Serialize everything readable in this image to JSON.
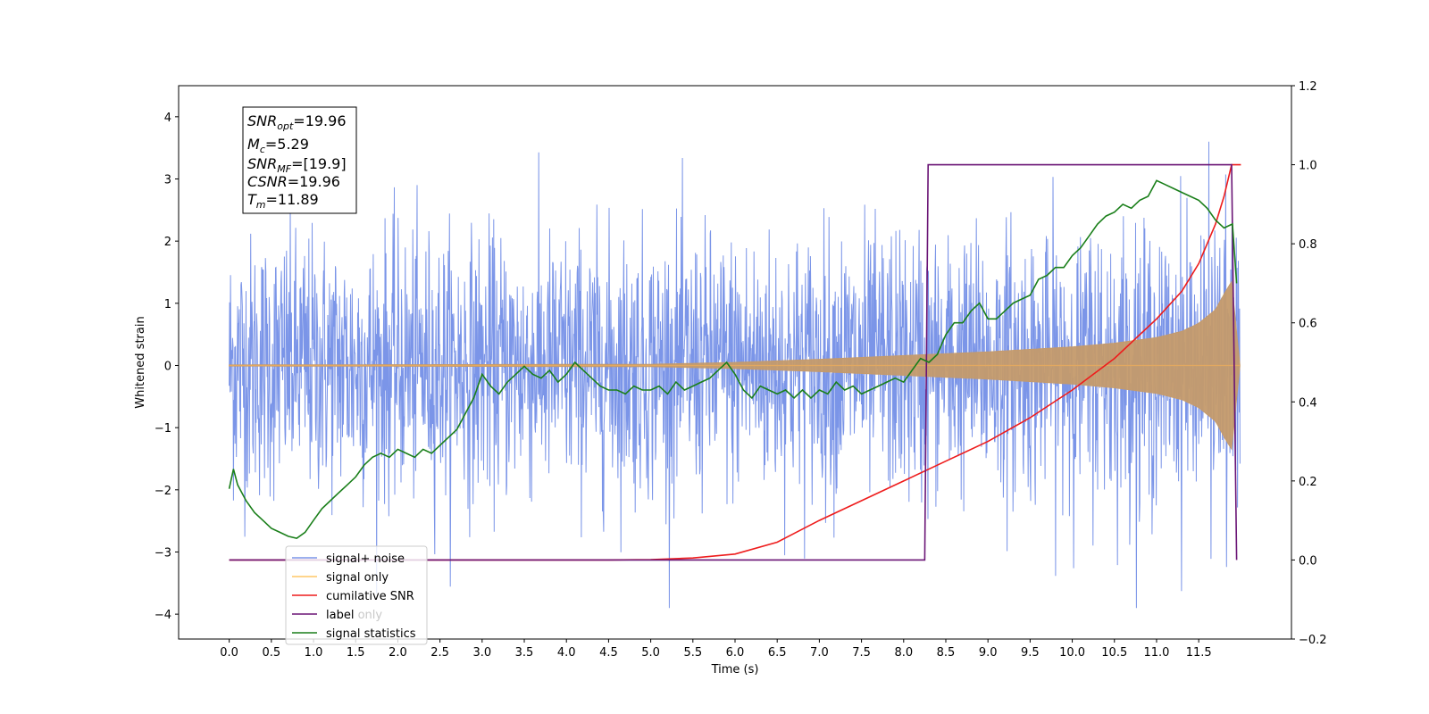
{
  "chart_data": {
    "type": "line",
    "xlabel": "Time (s)",
    "ylabel": "Whitened strain",
    "xlim": [
      -0.6,
      12.6
    ],
    "ylim": [
      -4.4,
      4.5
    ],
    "ylim_right": [
      -0.2,
      1.2
    ],
    "x_ticks": [
      "0.0",
      "0.5",
      "1.0",
      "1.5",
      "2.0",
      "2.5",
      "3.0",
      "3.5",
      "4.0",
      "4.5",
      "5.0",
      "5.5",
      "6.0",
      "6.5",
      "7.0",
      "7.5",
      "8.0",
      "8.5",
      "9.0",
      "9.5",
      "10.0",
      "10.5",
      "11.0",
      "11.5"
    ],
    "y_ticks": [
      "4",
      "3",
      "2",
      "1",
      "0",
      "−1",
      "−2",
      "−3",
      "−4"
    ],
    "y_ticks_right": [
      "1.2",
      "1.0",
      "0.8",
      "0.6",
      "0.4",
      "0.2",
      "0.0",
      "−0.2"
    ],
    "grid": false,
    "legend_position": "lower-left",
    "info_box": {
      "snr_opt_base": "SNR",
      "snr_opt_sub": "opt",
      "snr_opt_val": "=19.96",
      "mc_base": "M",
      "mc_sub": "c",
      "mc_val": "=5.29",
      "snr_mf_base": "SNR",
      "snr_mf_sub": "MF",
      "snr_mf_val": "=[19.9]",
      "csnr_base": "CSNR",
      "csnr_val": "=19.96",
      "tm_base": "T",
      "tm_sub": "m",
      "tm_val": "=11.89"
    },
    "series": [
      {
        "name": "signal+ noise",
        "color": "#7b95e8",
        "axis": "left",
        "description_values": {
          "noise_sigma": 1.0,
          "t_start": 0.0,
          "t_end": 11.99
        }
      },
      {
        "name": "signal only",
        "color": "#c49a6c",
        "axis": "left",
        "envelope": {
          "t": [
            0.0,
            5.0,
            6.0,
            7.0,
            8.0,
            9.0,
            10.0,
            10.5,
            11.0,
            11.3,
            11.5,
            11.7,
            11.8,
            11.89,
            11.99
          ],
          "amp": [
            0.01,
            0.02,
            0.05,
            0.1,
            0.16,
            0.22,
            0.3,
            0.36,
            0.45,
            0.55,
            0.68,
            0.9,
            1.15,
            1.35,
            0.0
          ]
        }
      },
      {
        "name": "cumilative SNR",
        "color": "#ee1c1c",
        "axis": "right",
        "x": [
          0.0,
          4.5,
          5.0,
          5.5,
          6.0,
          6.5,
          7.0,
          7.5,
          8.0,
          8.5,
          9.0,
          9.5,
          10.0,
          10.5,
          11.0,
          11.3,
          11.5,
          11.7,
          11.8,
          11.89,
          12.0
        ],
        "y": [
          0.0,
          0.0,
          0.001,
          0.005,
          0.015,
          0.045,
          0.1,
          0.15,
          0.2,
          0.25,
          0.3,
          0.36,
          0.43,
          0.51,
          0.61,
          0.68,
          0.75,
          0.85,
          0.92,
          1.0,
          1.0
        ]
      },
      {
        "name": "label",
        "color": "#6a1475",
        "axis": "right",
        "x": [
          0.0,
          8.25,
          8.29,
          11.89,
          11.95
        ],
        "y": [
          0.0,
          0.0,
          1.0,
          1.0,
          0.0
        ]
      },
      {
        "name": "label only",
        "color": "#6a1475",
        "axis": "right",
        "hidden": true
      },
      {
        "name": "signal statistics",
        "color": "#1a7f1a",
        "axis": "right",
        "x": [
          0.0,
          0.05,
          0.1,
          0.15,
          0.2,
          0.3,
          0.4,
          0.5,
          0.6,
          0.7,
          0.8,
          0.9,
          1.0,
          1.1,
          1.2,
          1.3,
          1.4,
          1.5,
          1.6,
          1.7,
          1.8,
          1.9,
          2.0,
          2.1,
          2.2,
          2.3,
          2.4,
          2.5,
          2.6,
          2.7,
          2.8,
          2.9,
          3.0,
          3.1,
          3.2,
          3.3,
          3.4,
          3.5,
          3.6,
          3.7,
          3.8,
          3.9,
          4.0,
          4.1,
          4.2,
          4.3,
          4.4,
          4.5,
          4.6,
          4.7,
          4.8,
          4.9,
          5.0,
          5.1,
          5.2,
          5.3,
          5.4,
          5.5,
          5.6,
          5.7,
          5.8,
          5.9,
          6.0,
          6.1,
          6.2,
          6.3,
          6.4,
          6.5,
          6.6,
          6.7,
          6.8,
          6.9,
          7.0,
          7.1,
          7.2,
          7.3,
          7.4,
          7.5,
          7.6,
          7.7,
          7.8,
          7.9,
          8.0,
          8.1,
          8.2,
          8.3,
          8.4,
          8.5,
          8.6,
          8.7,
          8.8,
          8.9,
          9.0,
          9.1,
          9.2,
          9.3,
          9.4,
          9.5,
          9.6,
          9.7,
          9.8,
          9.9,
          10.0,
          10.1,
          10.2,
          10.3,
          10.4,
          10.5,
          10.6,
          10.7,
          10.8,
          10.9,
          11.0,
          11.1,
          11.2,
          11.3,
          11.4,
          11.5,
          11.6,
          11.7,
          11.8,
          11.9,
          11.95
        ],
        "y": [
          0.18,
          0.23,
          0.19,
          0.17,
          0.15,
          0.12,
          0.1,
          0.08,
          0.07,
          0.06,
          0.055,
          0.07,
          0.1,
          0.13,
          0.15,
          0.17,
          0.19,
          0.21,
          0.24,
          0.26,
          0.27,
          0.26,
          0.28,
          0.27,
          0.26,
          0.28,
          0.27,
          0.29,
          0.31,
          0.33,
          0.37,
          0.41,
          0.47,
          0.44,
          0.42,
          0.45,
          0.47,
          0.49,
          0.47,
          0.46,
          0.48,
          0.45,
          0.47,
          0.5,
          0.48,
          0.46,
          0.44,
          0.43,
          0.43,
          0.42,
          0.44,
          0.43,
          0.43,
          0.44,
          0.42,
          0.45,
          0.43,
          0.44,
          0.45,
          0.46,
          0.48,
          0.5,
          0.47,
          0.43,
          0.41,
          0.44,
          0.43,
          0.42,
          0.43,
          0.41,
          0.43,
          0.41,
          0.43,
          0.42,
          0.45,
          0.43,
          0.44,
          0.42,
          0.43,
          0.44,
          0.45,
          0.46,
          0.45,
          0.48,
          0.51,
          0.5,
          0.52,
          0.57,
          0.6,
          0.6,
          0.63,
          0.65,
          0.61,
          0.61,
          0.63,
          0.65,
          0.66,
          0.67,
          0.71,
          0.72,
          0.74,
          0.74,
          0.77,
          0.79,
          0.82,
          0.85,
          0.87,
          0.88,
          0.9,
          0.89,
          0.91,
          0.92,
          0.96,
          0.95,
          0.94,
          0.93,
          0.92,
          0.91,
          0.89,
          0.86,
          0.84,
          0.85,
          0.7
        ]
      }
    ]
  }
}
